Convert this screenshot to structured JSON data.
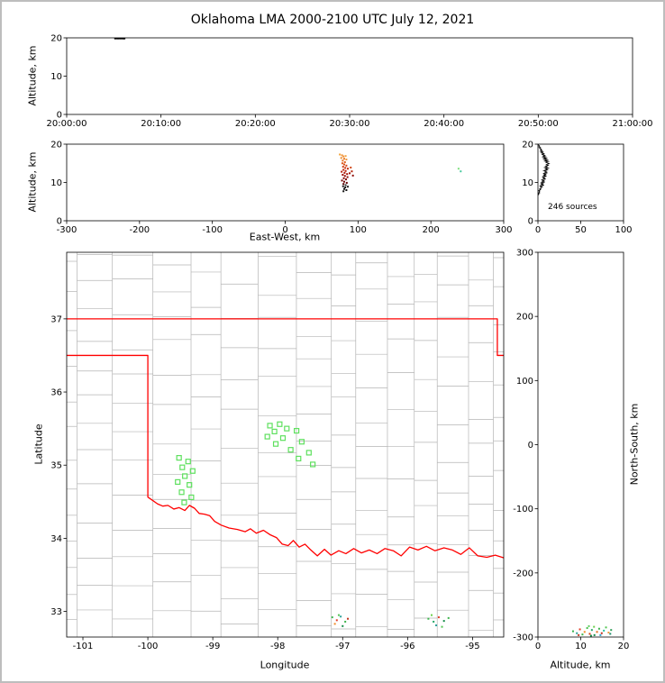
{
  "title": "Oklahoma LMA 2000-2100 UTC July 12, 2021",
  "colors": {
    "state_border": "#ff0000",
    "county": "#b4b4b4",
    "station": "#5ee05e",
    "axis": "#000000"
  },
  "chart_data": [
    {
      "id": "time_height",
      "type": "scatter",
      "xlabel": "",
      "ylabel": "Altitude, km",
      "xlim": [
        0,
        3600
      ],
      "ylim": [
        0,
        20
      ],
      "xticks": [
        {
          "v": 0,
          "label": "20:00:00"
        },
        {
          "v": 600,
          "label": "20:10:00"
        },
        {
          "v": 1200,
          "label": "20:20:00"
        },
        {
          "v": 1800,
          "label": "20:30:00"
        },
        {
          "v": 2400,
          "label": "20:40:00"
        },
        {
          "v": 3000,
          "label": "20:50:00"
        },
        {
          "v": 3600,
          "label": "21:00:00"
        }
      ],
      "yticks": [
        {
          "v": 20,
          "label": "20"
        },
        {
          "v": 10,
          "label": "10"
        },
        {
          "v": 0,
          "label": "0"
        }
      ],
      "marker": {
        "w": 2.6,
        "h": 1.6
      },
      "points": [
        [
          310,
          19.8,
          "#000000"
        ],
        [
          318,
          19.85,
          "#000000"
        ],
        [
          326,
          19.8,
          "#000000"
        ],
        [
          334,
          19.85,
          "#000000"
        ],
        [
          342,
          19.8,
          "#000000"
        ],
        [
          350,
          19.85,
          "#000000"
        ],
        [
          358,
          19.8,
          "#000000"
        ],
        [
          366,
          19.8,
          "#000000"
        ]
      ]
    },
    {
      "id": "ew_height",
      "type": "scatter",
      "xlabel": "East-West, km",
      "ylabel": "Altitude, km",
      "xlim": [
        -300,
        300
      ],
      "ylim": [
        0,
        20
      ],
      "xticks": [
        {
          "v": -300,
          "label": "-300"
        },
        {
          "v": -200,
          "label": "-200"
        },
        {
          "v": -100,
          "label": "-100"
        },
        {
          "v": 0,
          "label": "0"
        },
        {
          "v": 100,
          "label": "100"
        },
        {
          "v": 200,
          "label": "200"
        },
        {
          "v": 300,
          "label": "300"
        }
      ],
      "yticks": [
        {
          "v": 20,
          "label": "20"
        },
        {
          "v": 10,
          "label": "10"
        },
        {
          "v": 0,
          "label": "0"
        }
      ],
      "marker": {
        "w": 2,
        "h": 2
      },
      "points": [
        [
          75,
          17.3,
          "#f4a43a"
        ],
        [
          78,
          17.1,
          "#f0963a"
        ],
        [
          80,
          16.8,
          "#ef8e35"
        ],
        [
          83,
          16.9,
          "#f2a544"
        ],
        [
          77,
          16.4,
          "#ee8c30"
        ],
        [
          81,
          16.2,
          "#ea7f2a"
        ],
        [
          84,
          16.0,
          "#f09a40"
        ],
        [
          79,
          15.7,
          "#e77426"
        ],
        [
          82,
          15.3,
          "#e2621f"
        ],
        [
          78.5,
          15.0,
          "#dd571c"
        ],
        [
          81,
          14.7,
          "#d84f18"
        ],
        [
          84,
          14.4,
          "#d34414"
        ],
        [
          79.5,
          14.1,
          "#ce3b12"
        ],
        [
          82.5,
          13.8,
          "#c93410"
        ],
        [
          86,
          13.6,
          "#c42d0e"
        ],
        [
          80,
          13.3,
          "#bf270c"
        ],
        [
          83,
          13.0,
          "#ba220a"
        ],
        [
          77.5,
          12.8,
          "#b41d09"
        ],
        [
          81.5,
          12.5,
          "#ae1908"
        ],
        [
          85,
          12.2,
          "#a81507"
        ],
        [
          88.5,
          12.4,
          "#a31206"
        ],
        [
          79,
          12.0,
          "#9d0f05"
        ],
        [
          82,
          11.7,
          "#960c04"
        ],
        [
          85.5,
          11.4,
          "#8f0a03"
        ],
        [
          80.5,
          11.1,
          "#870803"
        ],
        [
          83.5,
          10.8,
          "#7f0602"
        ],
        [
          78,
          10.5,
          "#760402"
        ],
        [
          81,
          10.2,
          "#6d0301"
        ],
        [
          84.5,
          9.9,
          "#630201"
        ],
        [
          80,
          9.6,
          "#590101"
        ],
        [
          83,
          9.3,
          "#2b2b2b"
        ],
        [
          79.5,
          9.0,
          "#1c1c1c"
        ],
        [
          82.5,
          8.7,
          "#111111"
        ],
        [
          86,
          8.9,
          "#222222"
        ],
        [
          81,
          8.3,
          "#0d0d0d"
        ],
        [
          84,
          8.0,
          "#111111"
        ],
        [
          80,
          7.7,
          "#151515"
        ],
        [
          90,
          13.9,
          "#cf4416"
        ],
        [
          91.5,
          12.9,
          "#b22209"
        ],
        [
          93,
          11.8,
          "#8d0a03"
        ],
        [
          238,
          13.6,
          "#7fe07f"
        ],
        [
          241,
          12.9,
          "#46c99e"
        ]
      ]
    },
    {
      "id": "alt_histogram",
      "type": "line",
      "annotation": "246 sources",
      "xlabel": "",
      "ylabel": "",
      "xlim": [
        0,
        100
      ],
      "ylim": [
        0,
        20
      ],
      "xticks": [
        {
          "v": 0,
          "label": "0"
        },
        {
          "v": 50,
          "label": "50"
        },
        {
          "v": 100,
          "label": "100"
        }
      ],
      "yticks": [
        {
          "v": 20,
          "label": "20"
        },
        {
          "v": 10,
          "label": "10"
        },
        {
          "v": 0,
          "label": "0"
        }
      ],
      "profile": [
        [
          0,
          19.9
        ],
        [
          1,
          19.7
        ],
        [
          2,
          19.5
        ],
        [
          1,
          19.3
        ],
        [
          3,
          19.1
        ],
        [
          2,
          18.9
        ],
        [
          4,
          18.7
        ],
        [
          3,
          18.5
        ],
        [
          5,
          18.3
        ],
        [
          3,
          18.1
        ],
        [
          6,
          17.9
        ],
        [
          4,
          17.7
        ],
        [
          7,
          17.5
        ],
        [
          5,
          17.3
        ],
        [
          8,
          17.1
        ],
        [
          6,
          16.9
        ],
        [
          9,
          16.7
        ],
        [
          6,
          16.5
        ],
        [
          10,
          16.3
        ],
        [
          7,
          16.1
        ],
        [
          11,
          15.9
        ],
        [
          8,
          15.7
        ],
        [
          12,
          15.5
        ],
        [
          9,
          15.3
        ],
        [
          11,
          15.1
        ],
        [
          13,
          14.9
        ],
        [
          10,
          14.7
        ],
        [
          12,
          14.5
        ],
        [
          9,
          14.3
        ],
        [
          11,
          14.1
        ],
        [
          8,
          13.9
        ],
        [
          12,
          13.7
        ],
        [
          9,
          13.5
        ],
        [
          11,
          13.3
        ],
        [
          7,
          13.1
        ],
        [
          10,
          12.9
        ],
        [
          8,
          12.7
        ],
        [
          11,
          12.5
        ],
        [
          6,
          12.3
        ],
        [
          9,
          12.1
        ],
        [
          7,
          11.9
        ],
        [
          10,
          11.7
        ],
        [
          5,
          11.5
        ],
        [
          8,
          11.3
        ],
        [
          6,
          11.1
        ],
        [
          9,
          10.9
        ],
        [
          4,
          10.7
        ],
        [
          7,
          10.5
        ],
        [
          5,
          10.3
        ],
        [
          8,
          10.1
        ],
        [
          3,
          9.9
        ],
        [
          6,
          9.7
        ],
        [
          4,
          9.5
        ],
        [
          7,
          9.3
        ],
        [
          2,
          9.1
        ],
        [
          5,
          8.9
        ],
        [
          3,
          8.7
        ],
        [
          4,
          8.5
        ],
        [
          2,
          8.3
        ],
        [
          3,
          8.1
        ],
        [
          1,
          7.9
        ],
        [
          2,
          7.7
        ],
        [
          1,
          7.5
        ],
        [
          2,
          7.3
        ],
        [
          0,
          7.1
        ],
        [
          1,
          6.9
        ],
        [
          0,
          6.7
        ]
      ]
    },
    {
      "id": "plan_view",
      "type": "scatter",
      "xlabel": "Longitude",
      "ylabel": "Latitude",
      "xlim": [
        -101.25,
        -94.52
      ],
      "ylim": [
        32.65,
        37.91
      ],
      "xticks": [
        {
          "v": -101,
          "label": "-101"
        },
        {
          "v": -100,
          "label": "-100"
        },
        {
          "v": -99,
          "label": "-99"
        },
        {
          "v": -98,
          "label": "-98"
        },
        {
          "v": -97,
          "label": "-97"
        },
        {
          "v": -96,
          "label": "-96"
        },
        {
          "v": -95,
          "label": "-95"
        }
      ],
      "yticks": [
        {
          "v": 37,
          "label": "37"
        },
        {
          "v": 36,
          "label": "36"
        },
        {
          "v": 35,
          "label": "35"
        },
        {
          "v": 34,
          "label": "34"
        },
        {
          "v": 33,
          "label": "33"
        }
      ],
      "marker": {
        "w": 2,
        "h": 2
      },
      "state_border": [
        [
          [
            -101.3,
            37.0
          ],
          [
            -94.618,
            37.0
          ],
          [
            -94.618,
            36.5
          ],
          [
            -94.4,
            36.5
          ]
        ],
        [
          [
            -101.3,
            36.5
          ],
          [
            -100.0,
            36.5
          ],
          [
            -100.0,
            34.563
          ],
          [
            -99.93,
            34.52
          ],
          [
            -99.85,
            34.47
          ],
          [
            -99.77,
            34.44
          ],
          [
            -99.69,
            34.45
          ],
          [
            -99.6,
            34.4
          ],
          [
            -99.52,
            34.42
          ],
          [
            -99.43,
            34.38
          ],
          [
            -99.36,
            34.45
          ],
          [
            -99.28,
            34.41
          ],
          [
            -99.21,
            34.34
          ],
          [
            -99.13,
            34.33
          ],
          [
            -99.05,
            34.31
          ],
          [
            -98.97,
            34.23
          ],
          [
            -98.87,
            34.18
          ],
          [
            -98.75,
            34.14
          ],
          [
            -98.62,
            34.12
          ],
          [
            -98.5,
            34.09
          ],
          [
            -98.42,
            34.13
          ],
          [
            -98.33,
            34.07
          ],
          [
            -98.22,
            34.11
          ],
          [
            -98.12,
            34.05
          ],
          [
            -98.02,
            34.01
          ],
          [
            -97.93,
            33.92
          ],
          [
            -97.84,
            33.9
          ],
          [
            -97.76,
            33.97
          ],
          [
            -97.67,
            33.88
          ],
          [
            -97.58,
            33.92
          ],
          [
            -97.49,
            33.84
          ],
          [
            -97.39,
            33.76
          ],
          [
            -97.28,
            33.85
          ],
          [
            -97.18,
            33.77
          ],
          [
            -97.06,
            33.83
          ],
          [
            -96.95,
            33.79
          ],
          [
            -96.83,
            33.86
          ],
          [
            -96.71,
            33.8
          ],
          [
            -96.59,
            33.84
          ],
          [
            -96.47,
            33.79
          ],
          [
            -96.35,
            33.86
          ],
          [
            -96.22,
            33.83
          ],
          [
            -96.1,
            33.76
          ],
          [
            -95.97,
            33.88
          ],
          [
            -95.84,
            33.84
          ],
          [
            -95.71,
            33.89
          ],
          [
            -95.58,
            33.83
          ],
          [
            -95.44,
            33.87
          ],
          [
            -95.31,
            33.84
          ],
          [
            -95.18,
            33.78
          ],
          [
            -95.05,
            33.87
          ],
          [
            -94.92,
            33.76
          ],
          [
            -94.78,
            33.74
          ],
          [
            -94.65,
            33.77
          ],
          [
            -94.4,
            33.7
          ]
        ]
      ],
      "stations": [
        [
          -99.52,
          35.1
        ],
        [
          -99.38,
          35.05
        ],
        [
          -99.47,
          34.97
        ],
        [
          -99.31,
          34.92
        ],
        [
          -99.43,
          34.85
        ],
        [
          -99.54,
          34.77
        ],
        [
          -99.36,
          34.73
        ],
        [
          -99.48,
          34.63
        ],
        [
          -99.33,
          34.56
        ],
        [
          -99.44,
          34.49
        ],
        [
          -98.12,
          35.54
        ],
        [
          -97.97,
          35.56
        ],
        [
          -97.86,
          35.5
        ],
        [
          -98.05,
          35.46
        ],
        [
          -97.71,
          35.47
        ],
        [
          -98.16,
          35.39
        ],
        [
          -97.92,
          35.37
        ],
        [
          -98.03,
          35.29
        ],
        [
          -97.63,
          35.32
        ],
        [
          -97.8,
          35.21
        ],
        [
          -97.52,
          35.17
        ],
        [
          -97.68,
          35.09
        ],
        [
          -97.46,
          35.01
        ]
      ],
      "points": [
        [
          -97.16,
          32.92,
          "#3cb44b"
        ],
        [
          -97.09,
          32.88,
          "#e23d28"
        ],
        [
          -97.03,
          32.93,
          "#2aa198"
        ],
        [
          -96.96,
          32.86,
          "#3cb44b"
        ],
        [
          -97.12,
          32.83,
          "#f28c28"
        ],
        [
          -97.0,
          32.8,
          "#128a46"
        ],
        [
          -97.06,
          32.95,
          "#52c452"
        ],
        [
          -96.92,
          32.9,
          "#c3301b"
        ],
        [
          -95.68,
          32.9,
          "#3cb44b"
        ],
        [
          -95.6,
          32.86,
          "#23a566"
        ],
        [
          -95.52,
          32.92,
          "#e23d28"
        ],
        [
          -95.44,
          32.87,
          "#128a46"
        ],
        [
          -95.37,
          32.91,
          "#3cb44b"
        ],
        [
          -95.56,
          32.81,
          "#2aa198"
        ],
        [
          -95.47,
          32.79,
          "#52c452"
        ],
        [
          -95.63,
          32.95,
          "#6bd04a"
        ]
      ]
    },
    {
      "id": "ns_height",
      "type": "scatter",
      "xlabel": "Altitude, km",
      "ylabel": "North-South, km",
      "xlim": [
        0,
        20
      ],
      "ylim": [
        -300,
        300
      ],
      "xticks": [
        {
          "v": 0,
          "label": "0"
        },
        {
          "v": 10,
          "label": "10"
        },
        {
          "v": 20,
          "label": "20"
        }
      ],
      "yticks": [
        {
          "v": 300,
          "label": "300"
        },
        {
          "v": 200,
          "label": "200"
        },
        {
          "v": 100,
          "label": "100"
        },
        {
          "v": 0,
          "label": "0"
        },
        {
          "v": -100,
          "label": "-100"
        },
        {
          "v": -200,
          "label": "-200"
        },
        {
          "v": -300,
          "label": "-300"
        }
      ],
      "marker": {
        "w": 2,
        "h": 2
      },
      "points": [
        [
          8.2,
          -291,
          "#36b34a"
        ],
        [
          9.1,
          -294,
          "#2aa198"
        ],
        [
          9.8,
          -288,
          "#e23d28"
        ],
        [
          10.4,
          -296,
          "#3cb44b"
        ],
        [
          10.9,
          -292,
          "#f28c28"
        ],
        [
          11.5,
          -286,
          "#49c24e"
        ],
        [
          12.1,
          -295,
          "#d43d1a"
        ],
        [
          12.6,
          -289,
          "#23a566"
        ],
        [
          13.2,
          -297,
          "#128a46"
        ],
        [
          13.8,
          -292,
          "#e56a1a"
        ],
        [
          14.3,
          -287,
          "#3cb44b"
        ],
        [
          14.9,
          -294,
          "#c3301b"
        ],
        [
          15.4,
          -290,
          "#26c2a0"
        ],
        [
          15.9,
          -285,
          "#52c452"
        ],
        [
          16.5,
          -293,
          "#f09a40"
        ],
        [
          17.1,
          -289,
          "#2f9e57"
        ],
        [
          9.5,
          -297,
          "#c23a24"
        ],
        [
          11.9,
          -283,
          "#5ecf5e"
        ],
        [
          16.9,
          -295,
          "#1f8f6e"
        ],
        [
          13.1,
          -284,
          "#6bd04a"
        ],
        [
          12.4,
          -298,
          "#118844"
        ],
        [
          14.6,
          -297,
          "#2aa1c9"
        ]
      ]
    }
  ]
}
